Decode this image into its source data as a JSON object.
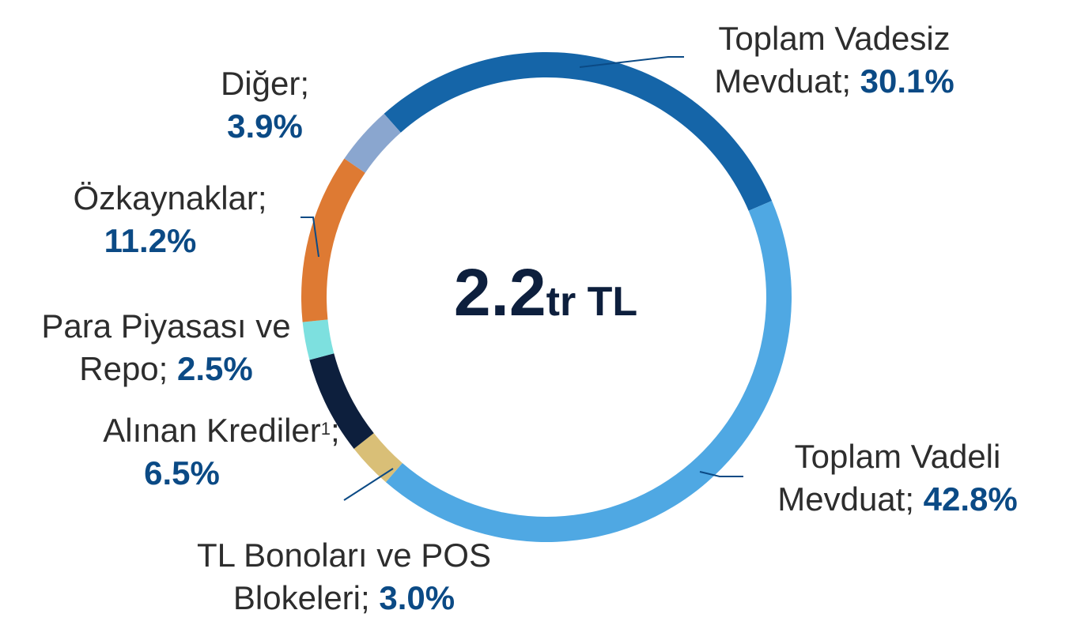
{
  "chart_data": {
    "type": "donut",
    "center_label": {
      "value": "2.2",
      "unit": "tr TL"
    },
    "slices": [
      {
        "name": "Toplam Vadesiz Mevduat",
        "value": 30.1,
        "pct_label": "30.1%",
        "color": "#1565a8"
      },
      {
        "name": "Toplam Vadeli Mevduat",
        "value": 42.8,
        "pct_label": "42.8%",
        "color": "#4fa8e3"
      },
      {
        "name": "TL Bonoları ve POS Blokeleri",
        "value": 3.0,
        "pct_label": "3.0%",
        "color": "#d9bf77"
      },
      {
        "name": "Alınan Krediler",
        "value": 6.5,
        "pct_label": "6.5%",
        "color": "#0d1f3d",
        "footnote": "1"
      },
      {
        "name": "Para Piyasası ve Repo",
        "value": 2.5,
        "pct_label": "2.5%",
        "color": "#7de0df"
      },
      {
        "name": "Özkaynaklar",
        "value": 11.2,
        "pct_label": "11.2%",
        "color": "#de7a33"
      },
      {
        "name": "Diğer",
        "value": 3.9,
        "pct_label": "3.9%",
        "color": "#8aa6cf"
      }
    ]
  },
  "labels": {
    "vadesiz": {
      "line1": "Toplam Vadesiz",
      "line2": "Mevduat;",
      "pct": "30.1%"
    },
    "vadeli": {
      "line1": "Toplam Vadeli",
      "line2": "Mevduat;",
      "pct": "42.8%"
    },
    "bonolar": {
      "line1": "TL Bonoları ve POS",
      "line2": "Blokeleri;",
      "pct": "3.0%"
    },
    "krediler": {
      "line1": "Alınan Krediler",
      "footnote": "1",
      "sep": ";",
      "pct": "6.5%"
    },
    "repo": {
      "line1": "Para Piyasası ve",
      "line2": "Repo;",
      "pct": "2.5%"
    },
    "ozkaynaklar": {
      "line1": "Özkaynaklar;",
      "pct": "11.2%"
    },
    "diger": {
      "line1": "Diğer;",
      "pct": "3.9%"
    }
  },
  "colors": {
    "leader_line": "#0b4a85",
    "percent_text": "#0b4a85",
    "center_text": "#0d1f3d"
  }
}
